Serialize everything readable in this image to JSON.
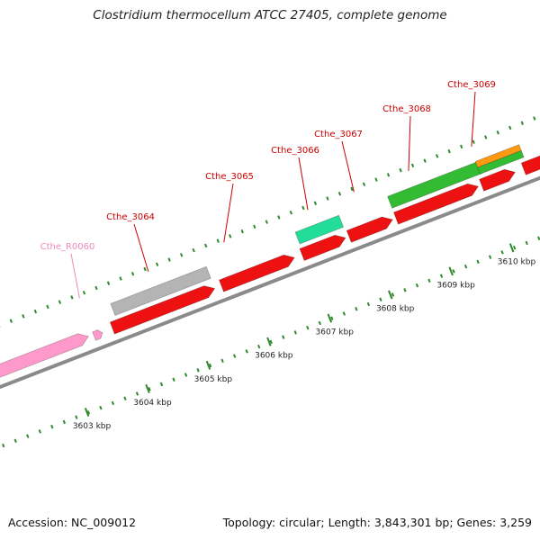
{
  "title": "Clostridium thermocellum ATCC 27405, complete genome",
  "footer": {
    "accession": "Accession: NC_009012",
    "summary": "Topology: circular; Length: 3,843,301 bp; Genes: 3,259"
  },
  "colors": {
    "backbone": "#8a8a8a",
    "tick": "#2d8a2d",
    "gene_label": "#cc0000",
    "rna_label": "#ee88bb",
    "red": "#ee1111",
    "gray": "#b4b4b4",
    "green": "#33bb33",
    "mint": "#22dd99",
    "orange": "#ff9911",
    "pink": "#ff99cc"
  },
  "scale": {
    "unit": "kbp",
    "labels": [
      "3603 kbp",
      "3604 kbp",
      "3605 kbp",
      "3606 kbp",
      "3607 kbp",
      "3608 kbp",
      "3609 kbp",
      "3610 kbp"
    ]
  },
  "gene_labels": [
    "Cthe_R0060",
    "Cthe_3064",
    "Cthe_3065",
    "Cthe_3066",
    "Cthe_3067",
    "Cthe_3068",
    "Cthe_3069"
  ]
}
